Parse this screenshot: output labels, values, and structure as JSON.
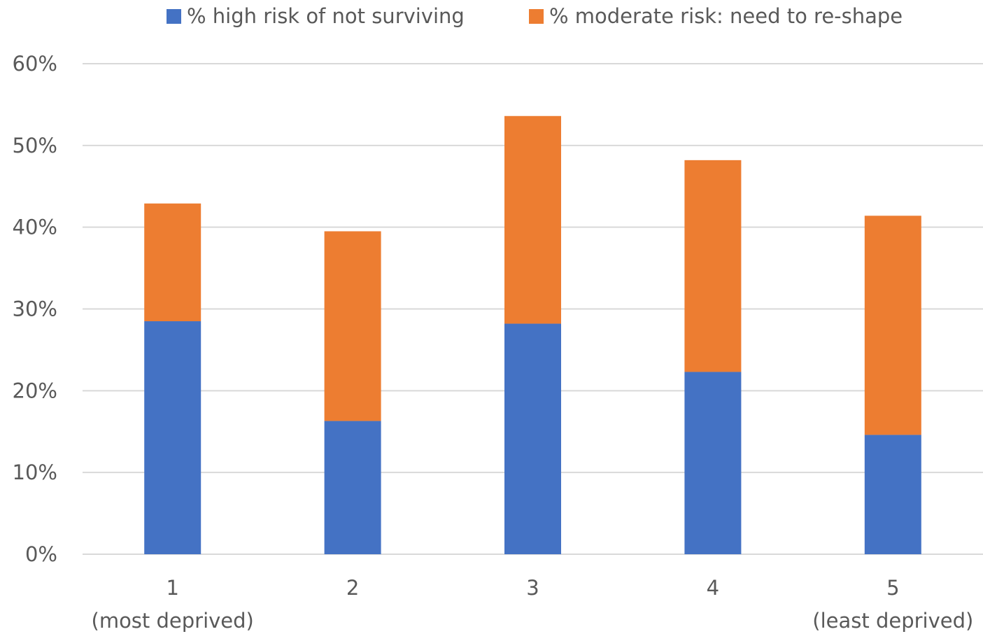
{
  "chart_data": {
    "type": "bar",
    "stacked": true,
    "categories": [
      [
        "1",
        "(most deprived)"
      ],
      [
        "2",
        ""
      ],
      [
        "3",
        ""
      ],
      [
        "4",
        ""
      ],
      [
        "5",
        "(least deprived)"
      ]
    ],
    "series": [
      {
        "name": "% high risk of not surviving",
        "color": "#4472c4",
        "values": [
          28.5,
          16.3,
          28.2,
          22.3,
          14.6
        ]
      },
      {
        "name": "% moderate risk: need to re-shape",
        "color": "#ed7d31",
        "values": [
          14.4,
          23.2,
          25.4,
          25.9,
          26.8
        ]
      }
    ],
    "yticks": [
      "0%",
      "10%",
      "20%",
      "30%",
      "40%",
      "50%",
      "60%"
    ],
    "ylim": [
      0,
      60
    ],
    "grid": true,
    "legend_position": "top"
  }
}
